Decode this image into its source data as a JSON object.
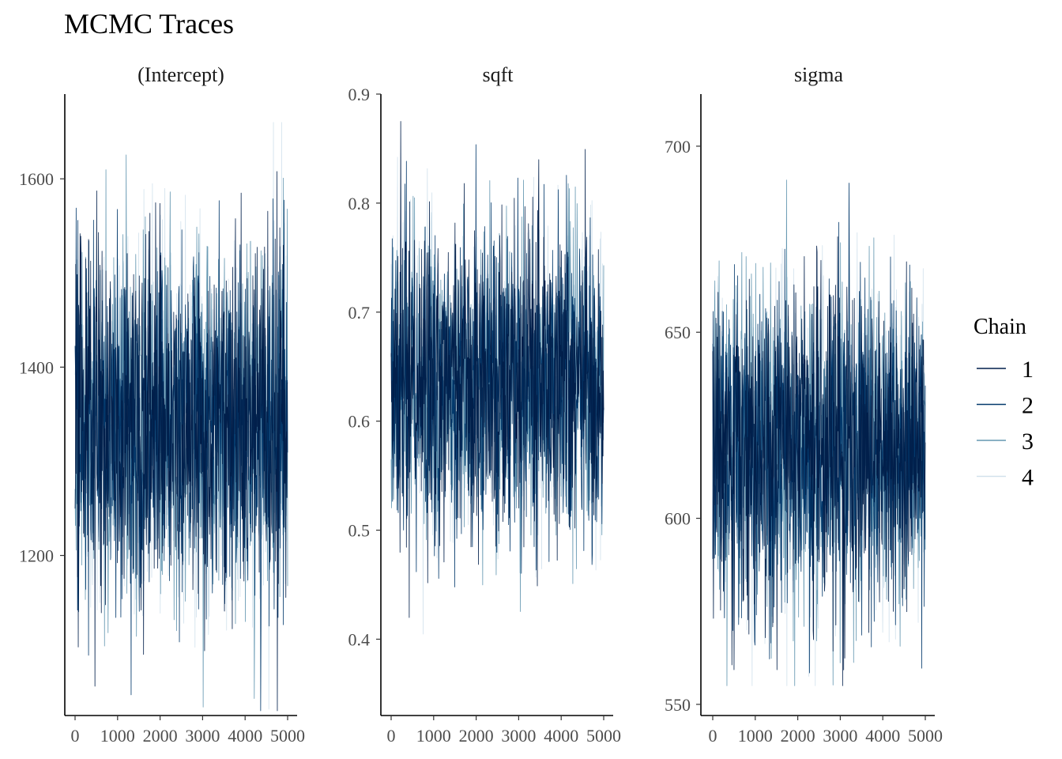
{
  "title": "MCMC Traces",
  "chart_data": {
    "type": "line",
    "title": "MCMC Traces",
    "x_range": [
      0,
      5000
    ],
    "x_ticks": [
      "0",
      "1000",
      "2000",
      "3000",
      "4000",
      "5000"
    ],
    "legend": {
      "title": "Chain",
      "position": "right",
      "entries": [
        {
          "label": "1",
          "color": "#011f4b"
        },
        {
          "label": "2",
          "color": "#03396c"
        },
        {
          "label": "3",
          "color": "#6497b1"
        },
        {
          "label": "4",
          "color": "#d1e1ec"
        }
      ]
    },
    "panels": [
      {
        "name": "(Intercept)",
        "ylim": [
          1030,
          1690
        ],
        "y_ticks": [
          1200,
          1400,
          1600
        ],
        "y_tick_labels": [
          "1200",
          "1400",
          "1600"
        ],
        "mean": 1340,
        "sd": 95,
        "min": 1035,
        "max": 1660
      },
      {
        "name": "sqft",
        "ylim": [
          0.33,
          0.9
        ],
        "y_ticks": [
          0.4,
          0.5,
          0.6,
          0.7,
          0.8,
          0.9
        ],
        "y_tick_labels": [
          "0.4",
          "0.5",
          "0.6",
          "0.7",
          "0.8",
          "0.9"
        ],
        "mean": 0.635,
        "sd": 0.07,
        "min": 0.345,
        "max": 0.875
      },
      {
        "name": "sigma",
        "ylim": [
          547,
          714
        ],
        "y_ticks": [
          550,
          600,
          650,
          700
        ],
        "y_tick_labels": [
          "550",
          "600",
          "650",
          "700"
        ],
        "mean": 618,
        "sd": 22,
        "min": 555,
        "max": 707
      }
    ]
  }
}
